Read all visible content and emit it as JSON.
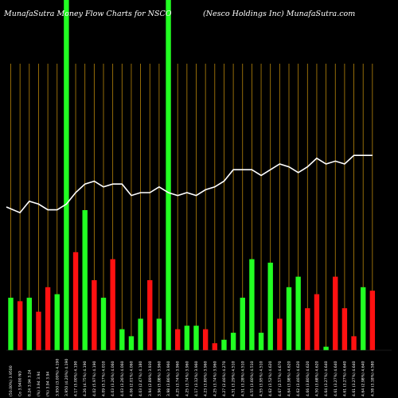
{
  "header": {
    "left_title": "MunafaSutra  Money Flow  Charts for NSCO",
    "right_title": "(Nesco  Holdings Inc) MunafaSutra.com"
  },
  "chart_data": {
    "type": "bar",
    "title": "MunafaSutra  Money Flow  Charts for NSCO",
    "subtitle": "(Nesco  Holdings Inc) MunafaSutra.com",
    "grid": true,
    "colors": {
      "up": "#22ff22",
      "down": "#ff1111",
      "line": "#ffffff",
      "grid": "#b8860b",
      "background": "#000000"
    },
    "ylim": [
      0,
      100
    ],
    "categories": [
      "(50.00%) 3.9500",
      "Co 3.9400 NO",
      "8.24 3.94 3.24",
      "(%) 3.94 3.94",
      "(%) 3.94 3.94",
      "3.950 (3.00%) 4.190",
      "3.950 (4.20%) 4.190",
      "4.17 (5.00%) 4.190",
      "4.26 (4.75%) 4.190",
      "4.02 (5.97%) 4.190",
      "4.09 (5.17%) 4.010",
      "4.03 (3.26%) 4.060",
      "4.03 (3.26%) 4.060",
      "4.06 (2.01%) 4.060",
      "4.03 (2.47%) 4.180",
      "3.94 (2.89%) 3.930",
      "3.96 (5.08%) 3.960",
      "3.98 (3.86%) 3.960",
      "4.25 (3.74%) 3.960",
      "4.25 (3.74%) 3.960",
      "4.17 (3.12%) 3.960",
      "4.23 (3.80%) 3.960",
      "4.25 (3.74%) 3.960",
      "4.27 (2.46%) 4.270",
      "4.51 (3.29%) 4.510",
      "4.51 (3.28%) 4.510",
      "4.55 (3.60%) 4.510",
      "4.55 (3.95%) 4.510",
      "4.62 (3.52%) 4.620",
      "4.67 (2.57%) 4.670",
      "4.64 (3.98%) 4.620",
      "4.62 (3.46%) 4.620",
      "4.66 (3.80%) 4.620",
      "4.50 (3.68%) 4.620",
      "4.64 (3.27%) 4.640",
      "4.61 (3.27%) 4.640",
      "4.61 (3.27%) 4.640",
      "4.61 (3.27%) 4.640",
      "4.64 (2.98%) 4.640",
      "4.58 (3.18%) 4.580"
    ],
    "series": [
      {
        "colors": [
          "green",
          "red",
          "green",
          "red",
          "red",
          "green",
          "green",
          "red",
          "green",
          "red",
          "green",
          "red",
          "green",
          "green",
          "green",
          "red",
          "green",
          "green",
          "red",
          "green",
          "green",
          "red",
          "red",
          "green",
          "green",
          "green",
          "green",
          "green",
          "green",
          "red",
          "green",
          "green",
          "red",
          "red",
          "green",
          "red",
          "red",
          "red",
          "green",
          "red"
        ],
        "values": [
          15,
          14,
          15,
          11,
          18,
          16,
          100,
          28,
          40,
          20,
          15,
          26,
          6,
          4,
          9,
          20,
          9,
          100,
          6,
          7,
          7,
          6,
          2,
          3,
          5,
          15,
          26,
          5,
          25,
          9,
          18,
          21,
          12,
          16,
          1,
          21,
          12,
          4,
          18,
          17
        ]
      },
      {
        "type": "line",
        "values": [
          50,
          48,
          52,
          51,
          49,
          49,
          51,
          55,
          58,
          59,
          57,
          58,
          58,
          54,
          55,
          55,
          57,
          55,
          54,
          55,
          54,
          56,
          57,
          59,
          63,
          63,
          63,
          61,
          63,
          65,
          64,
          62,
          64,
          67,
          65,
          66,
          65,
          68,
          68,
          68
        ]
      }
    ]
  }
}
